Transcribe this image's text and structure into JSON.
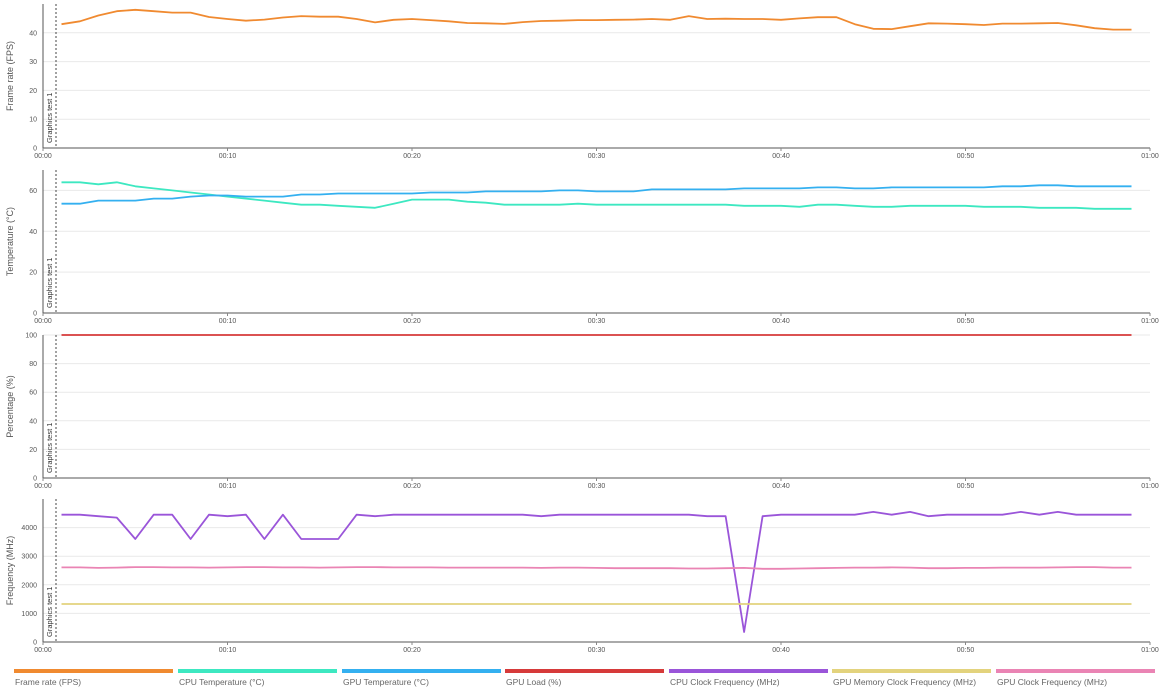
{
  "chart_data": [
    {
      "type": "line",
      "ylabel": "Frame rate (FPS)",
      "ylim": [
        0,
        50
      ],
      "yticks": [
        "0",
        "10",
        "20",
        "30",
        "40"
      ],
      "xlim": [
        "00:00",
        "01:00"
      ],
      "xticks": [
        "00:00",
        "00:10",
        "00:20",
        "00:30",
        "00:40",
        "00:50",
        "01:00"
      ],
      "marker": "Graphics test 1",
      "grid": true,
      "series": [
        {
          "name": "Frame rate (FPS)",
          "color": "#f08a30",
          "x": [
            1,
            2,
            3,
            4,
            5,
            6,
            7,
            8,
            9,
            10,
            11,
            12,
            13,
            14,
            15,
            16,
            17,
            18,
            19,
            20,
            21,
            22,
            23,
            24,
            25,
            26,
            27,
            28,
            29,
            30,
            31,
            32,
            33,
            34,
            35,
            36,
            37,
            38,
            39,
            40,
            41,
            42,
            43,
            44,
            45,
            46,
            47,
            48,
            49,
            50,
            51,
            52,
            53,
            54,
            55,
            56,
            57,
            58,
            59
          ],
          "values": [
            43,
            44,
            46,
            47.5,
            48,
            47.5,
            47,
            47,
            45.5,
            44.8,
            44.2,
            44.6,
            45.3,
            45.8,
            45.6,
            45.6,
            44.8,
            43.6,
            44.5,
            44.8,
            44.4,
            44,
            43.4,
            43.3,
            43.1,
            43.7,
            44.1,
            44.2,
            44.4,
            44.4,
            44.5,
            44.6,
            44.8,
            44.5,
            45.8,
            44.8,
            44.9,
            44.8,
            44.8,
            44.5,
            45,
            45.4,
            45.4,
            43,
            41.4,
            41.3,
            42.3,
            43.3,
            43.2,
            43,
            42.7,
            43.2,
            43.2,
            43.3,
            43.4,
            42.6,
            41.6,
            41.1,
            41.1
          ]
        }
      ]
    },
    {
      "type": "line",
      "ylabel": "Temperature (°C)",
      "ylim": [
        0,
        70
      ],
      "yticks": [
        "0",
        "20",
        "40",
        "60"
      ],
      "xlim": [
        "00:00",
        "01:00"
      ],
      "xticks": [
        "00:00",
        "00:10",
        "00:20",
        "00:30",
        "00:40",
        "00:50",
        "01:00"
      ],
      "marker": "Graphics test 1",
      "grid": true,
      "series": [
        {
          "name": "CPU Temperature (°C)",
          "color": "#3de8c1",
          "x": [
            1,
            2,
            3,
            4,
            5,
            6,
            7,
            8,
            9,
            10,
            11,
            12,
            13,
            14,
            15,
            16,
            17,
            18,
            19,
            20,
            21,
            22,
            23,
            24,
            25,
            26,
            27,
            28,
            29,
            30,
            31,
            32,
            33,
            34,
            35,
            36,
            37,
            38,
            39,
            40,
            41,
            42,
            43,
            44,
            45,
            46,
            47,
            48,
            49,
            50,
            51,
            52,
            53,
            54,
            55,
            56,
            57,
            58,
            59
          ],
          "values": [
            64,
            64,
            63,
            64,
            62,
            61,
            60,
            59,
            58,
            57,
            56,
            55,
            54,
            53,
            53,
            52.5,
            52,
            51.5,
            53.5,
            55.5,
            55.5,
            55.5,
            54.5,
            54,
            53,
            53,
            53,
            53,
            53.5,
            53,
            53,
            53,
            53,
            53,
            53,
            53,
            53,
            52.5,
            52.5,
            52.5,
            52,
            53,
            53,
            52.5,
            52,
            52,
            52.5,
            52.5,
            52.5,
            52.5,
            52,
            52,
            52,
            51.5,
            51.5,
            51.5,
            51,
            51,
            51
          ]
        },
        {
          "name": "GPU Temperature (°C)",
          "color": "#34b0f0",
          "x": [
            1,
            2,
            3,
            4,
            5,
            6,
            7,
            8,
            9,
            10,
            11,
            12,
            13,
            14,
            15,
            16,
            17,
            18,
            19,
            20,
            21,
            22,
            23,
            24,
            25,
            26,
            27,
            28,
            29,
            30,
            31,
            32,
            33,
            34,
            35,
            36,
            37,
            38,
            39,
            40,
            41,
            42,
            43,
            44,
            45,
            46,
            47,
            48,
            49,
            50,
            51,
            52,
            53,
            54,
            55,
            56,
            57,
            58,
            59
          ],
          "values": [
            53.5,
            53.5,
            55,
            55,
            55,
            56,
            56,
            57,
            57.5,
            57.5,
            57,
            57,
            57,
            58,
            58,
            58.5,
            58.5,
            58.5,
            58.5,
            58.5,
            59,
            59,
            59,
            59.5,
            59.5,
            59.5,
            59.5,
            60,
            60,
            59.5,
            59.5,
            59.5,
            60.5,
            60.5,
            60.5,
            60.5,
            60.5,
            61,
            61,
            61,
            61,
            61.5,
            61.5,
            61,
            61,
            61.5,
            61.5,
            61.5,
            61.5,
            61.5,
            61.5,
            62,
            62,
            62.5,
            62.5,
            62,
            62,
            62,
            62
          ]
        }
      ]
    },
    {
      "type": "line",
      "ylabel": "Percentage (%)",
      "ylim": [
        0,
        100
      ],
      "yticks": [
        "0",
        "20",
        "40",
        "60",
        "80",
        "100"
      ],
      "xlim": [
        "00:00",
        "01:00"
      ],
      "xticks": [
        "00:00",
        "00:10",
        "00:20",
        "00:30",
        "00:40",
        "00:50",
        "01:00"
      ],
      "marker": "Graphics test 1",
      "grid": true,
      "series": [
        {
          "name": "GPU Load (%)",
          "color": "#d63a3a",
          "x": [
            1,
            59
          ],
          "values": [
            100,
            100
          ]
        }
      ]
    },
    {
      "type": "line",
      "ylabel": "Frequency (MHz)",
      "ylim": [
        0,
        5000
      ],
      "yticks": [
        "0",
        "1000",
        "2000",
        "3000",
        "4000"
      ],
      "xlim": [
        "00:00",
        "01:00"
      ],
      "xticks": [
        "00:00",
        "00:10",
        "00:20",
        "00:30",
        "00:40",
        "00:50",
        "01:00"
      ],
      "marker": "Graphics test 1",
      "grid": true,
      "series": [
        {
          "name": "CPU Clock Frequency (MHz)",
          "color": "#9a55d9",
          "x": [
            1,
            2,
            3,
            4,
            5,
            6,
            7,
            8,
            9,
            10,
            11,
            12,
            13,
            14,
            15,
            16,
            17,
            18,
            19,
            20,
            21,
            22,
            23,
            24,
            25,
            26,
            27,
            28,
            29,
            30,
            31,
            32,
            33,
            34,
            35,
            36,
            37,
            38,
            39,
            40,
            41,
            42,
            43,
            44,
            45,
            46,
            47,
            48,
            49,
            50,
            51,
            52,
            53,
            54,
            55,
            56,
            57,
            58,
            59
          ],
          "values": [
            4450,
            4450,
            4400,
            4350,
            3600,
            4450,
            4450,
            3600,
            4450,
            4400,
            4450,
            3600,
            4450,
            3600,
            3600,
            3600,
            4450,
            4400,
            4450,
            4450,
            4450,
            4450,
            4450,
            4450,
            4450,
            4450,
            4400,
            4450,
            4450,
            4450,
            4450,
            4450,
            4450,
            4450,
            4450,
            4400,
            4400,
            350,
            4400,
            4450,
            4450,
            4450,
            4450,
            4450,
            4550,
            4450,
            4550,
            4400,
            4450,
            4450,
            4450,
            4450,
            4550,
            4450,
            4550,
            4450,
            4450,
            4450,
            4450
          ]
        },
        {
          "name": "GPU Memory Clock Frequency (MHz)",
          "color": "#e3d37d",
          "x": [
            1,
            59
          ],
          "values": [
            1330,
            1330
          ]
        },
        {
          "name": "GPU Clock Frequency (MHz)",
          "color": "#ea84b4",
          "x": [
            1,
            2,
            3,
            4,
            5,
            6,
            7,
            8,
            9,
            10,
            11,
            12,
            13,
            14,
            15,
            16,
            17,
            18,
            19,
            20,
            21,
            22,
            23,
            24,
            25,
            26,
            27,
            28,
            29,
            30,
            31,
            32,
            33,
            34,
            35,
            36,
            37,
            38,
            39,
            40,
            41,
            42,
            43,
            44,
            45,
            46,
            47,
            48,
            49,
            50,
            51,
            52,
            53,
            54,
            55,
            56,
            57,
            58,
            59
          ],
          "values": [
            2610,
            2610,
            2590,
            2600,
            2620,
            2620,
            2610,
            2610,
            2600,
            2610,
            2620,
            2620,
            2610,
            2610,
            2600,
            2610,
            2620,
            2620,
            2610,
            2610,
            2610,
            2600,
            2600,
            2600,
            2600,
            2600,
            2590,
            2600,
            2600,
            2590,
            2580,
            2580,
            2580,
            2580,
            2570,
            2570,
            2580,
            2590,
            2560,
            2560,
            2570,
            2580,
            2590,
            2600,
            2600,
            2610,
            2600,
            2580,
            2580,
            2590,
            2590,
            2600,
            2600,
            2600,
            2610,
            2620,
            2620,
            2600,
            2600
          ]
        }
      ]
    }
  ],
  "legend": [
    {
      "label": "Frame rate (FPS)",
      "color": "#f08a30"
    },
    {
      "label": "CPU Temperature (°C)",
      "color": "#3de8c1"
    },
    {
      "label": "GPU Temperature (°C)",
      "color": "#34b0f0"
    },
    {
      "label": "GPU Load (%)",
      "color": "#d63a3a"
    },
    {
      "label": "CPU Clock Frequency (MHz)",
      "color": "#9a55d9"
    },
    {
      "label": "GPU Memory Clock Frequency (MHz)",
      "color": "#e3d37d"
    },
    {
      "label": "GPU Clock Frequency (MHz)",
      "color": "#ea84b4"
    }
  ]
}
